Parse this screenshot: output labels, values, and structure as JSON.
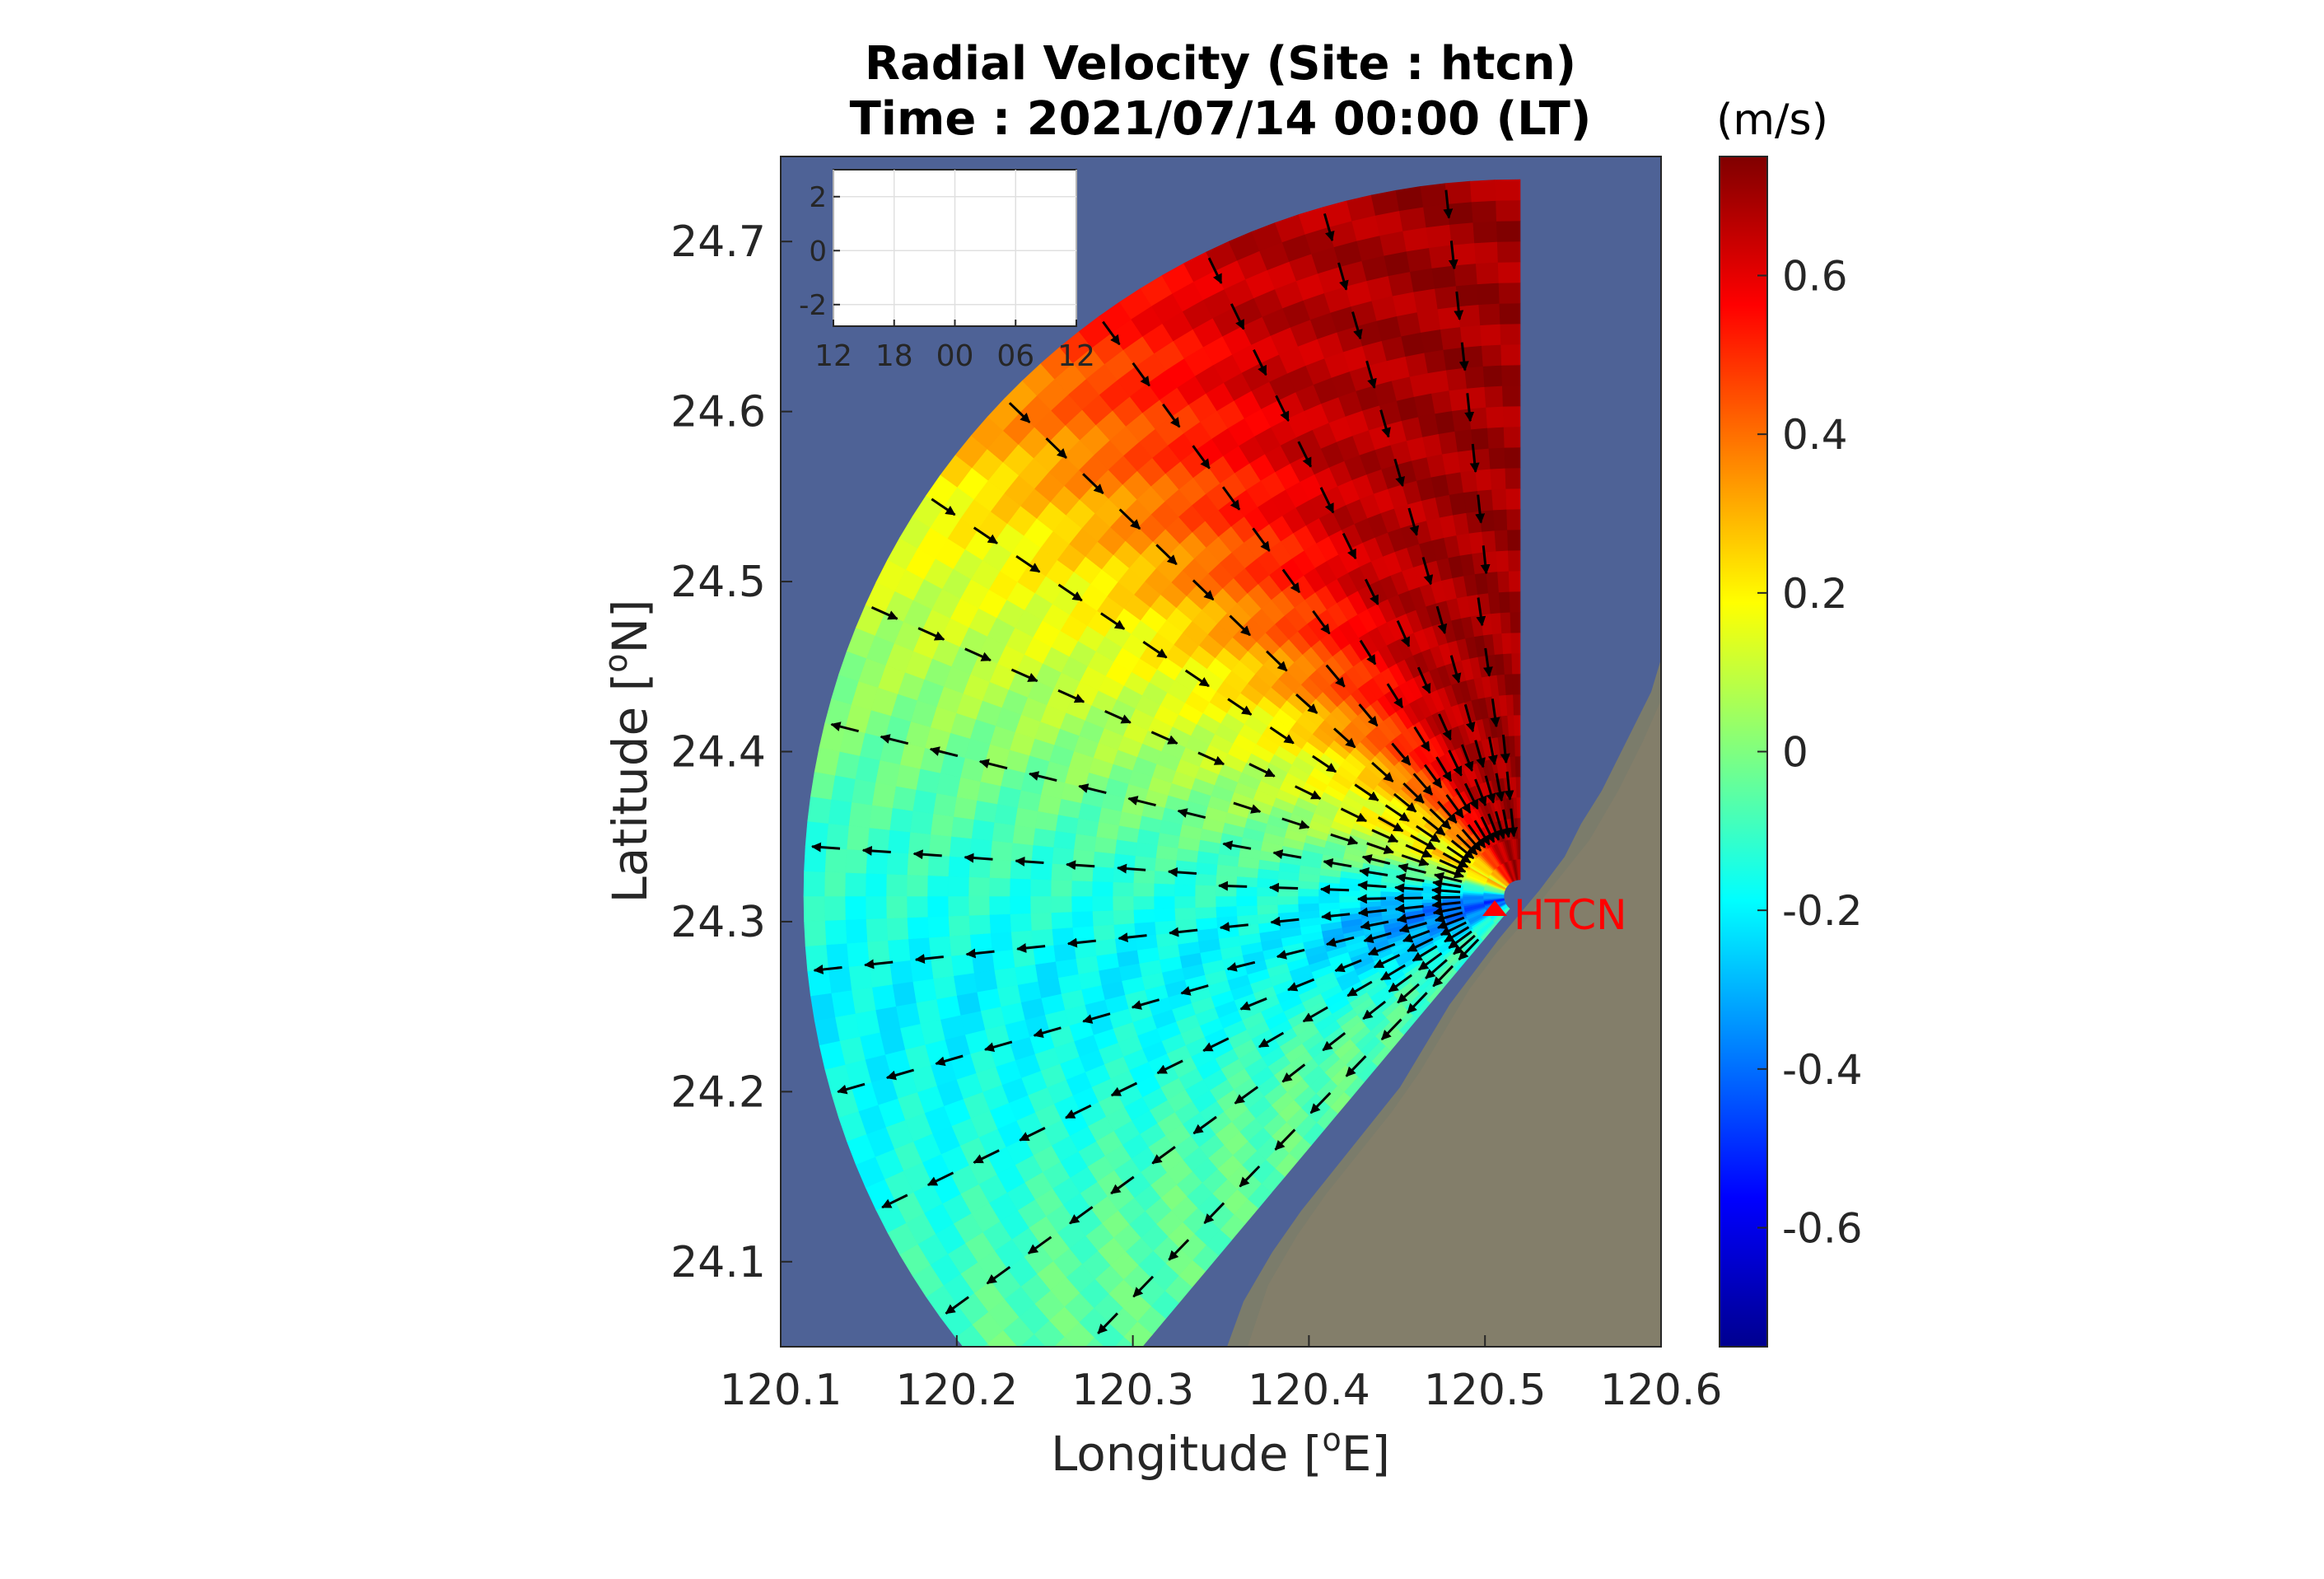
{
  "title_line1": "Radial Velocity (Site : htcn)",
  "title_line2": "Time : 2021/07/14 00:00 (LT)",
  "colorbar_unit": "(m/s)",
  "xlabel_main": "Longitude [",
  "xlabel_sup": "o",
  "xlabel_end": "E]",
  "ylabel_main": "Latitude [",
  "ylabel_sup": "o",
  "ylabel_end": "N]",
  "site_label": "HTCN",
  "colors": {
    "sea": "#4e6296",
    "land": "#7b7c6b",
    "site_marker": "#ff0000",
    "arrow": "#000000"
  },
  "chart_data": [
    {
      "type": "heatmap",
      "description": "polar sector map of radial velocity with current vectors",
      "xlim": [
        120.1,
        120.6
      ],
      "ylim": [
        24.05,
        24.75
      ],
      "xticks": [
        "120.1",
        "120.2",
        "120.3",
        "120.4",
        "120.5",
        "120.6"
      ],
      "yticks": [
        "24.1",
        "24.2",
        "24.3",
        "24.4",
        "24.5",
        "24.6",
        "24.7"
      ],
      "site": {
        "name": "HTCN",
        "lon": 120.52,
        "lat": 24.315
      },
      "sector": {
        "bearing_start_deg": 220,
        "bearing_end_deg": 360,
        "max_range_km": 40
      },
      "colorbar": {
        "min": -0.75,
        "max": 0.75,
        "ticks": [
          "0.6",
          "0.4",
          "0.2",
          "0",
          "-0.2",
          "-0.4",
          "-0.6"
        ],
        "colormap": "jet"
      },
      "velocity_field": [
        {
          "bearing_deg": 350,
          "value": 0.7
        },
        {
          "bearing_deg": 335,
          "value": 0.65
        },
        {
          "bearing_deg": 320,
          "value": 0.45
        },
        {
          "bearing_deg": 305,
          "value": 0.2
        },
        {
          "bearing_deg": 290,
          "value": 0.05
        },
        {
          "bearing_deg": 275,
          "value": -0.1
        },
        {
          "bearing_deg": 260,
          "value": -0.2
        },
        {
          "bearing_deg": 245,
          "value": -0.15
        },
        {
          "bearing_deg": 230,
          "value": -0.05
        }
      ]
    },
    {
      "type": "line",
      "description": "inset time series",
      "xticks": [
        "12",
        "18",
        "00",
        "06",
        "12"
      ],
      "yticks": [
        "2",
        "0",
        "-2"
      ],
      "ylim": [
        -2.8,
        3
      ],
      "series": []
    }
  ]
}
